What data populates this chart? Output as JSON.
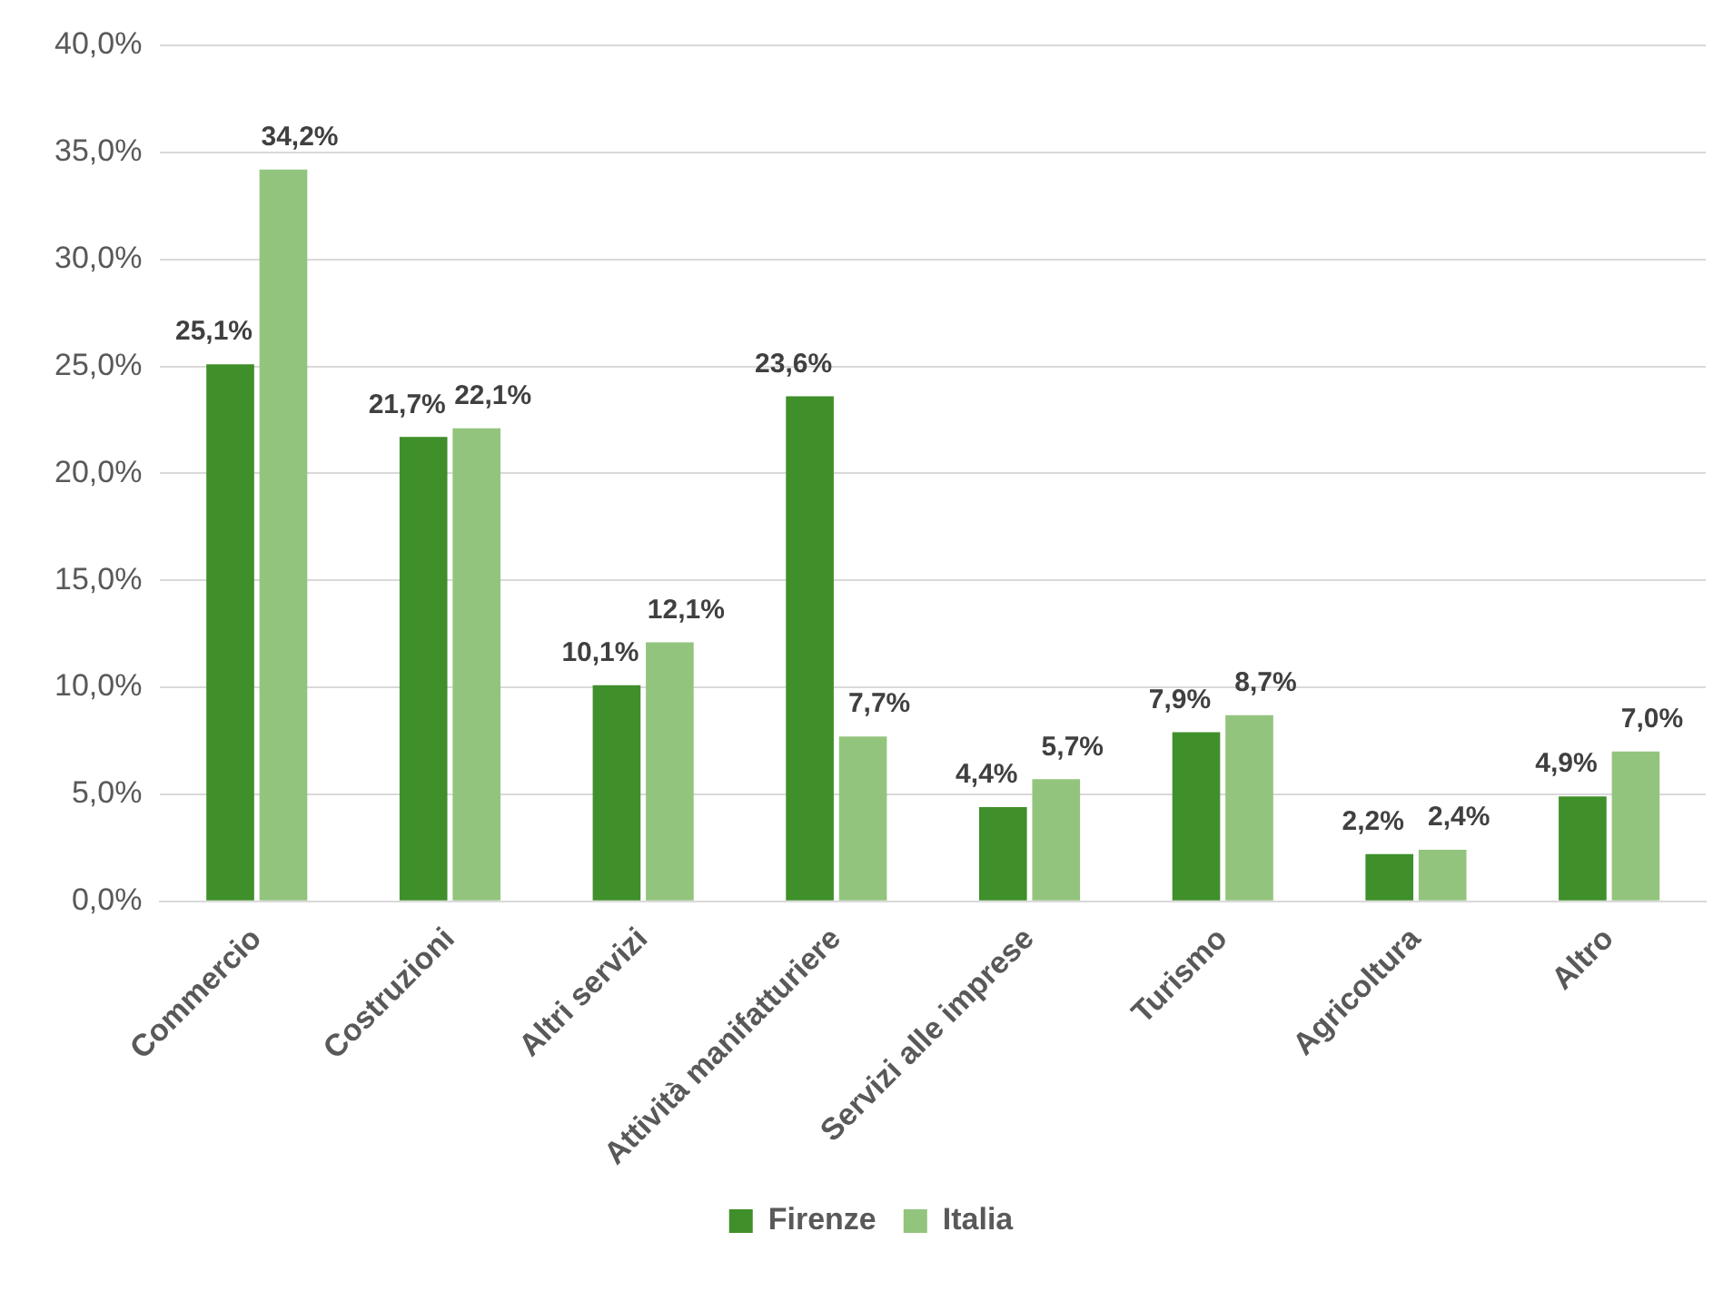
{
  "chart_data": {
    "type": "bar",
    "categories": [
      "Commercio",
      "Costruzioni",
      "Altri servizi",
      "Attività manifatturiere",
      "Servizi alle imprese",
      "Turismo",
      "Agricoltura",
      "Altro"
    ],
    "series": [
      {
        "name": "Firenze",
        "color": "#3f8f2a",
        "values": [
          25.1,
          21.7,
          10.1,
          23.6,
          4.4,
          7.9,
          2.2,
          4.9
        ],
        "value_labels": [
          "25,1%",
          "21,7%",
          "10,1%",
          "23,6%",
          "4,4%",
          "7,9%",
          "2,2%",
          "4,9%"
        ]
      },
      {
        "name": "Italia",
        "color": "#93c47d",
        "values": [
          34.2,
          22.1,
          12.1,
          7.7,
          5.7,
          8.7,
          2.4,
          7.0
        ],
        "value_labels": [
          "34,2%",
          "22,1%",
          "12,1%",
          "7,7%",
          "5,7%",
          "8,7%",
          "2,4%",
          "7,0%"
        ]
      }
    ],
    "ylim": [
      0,
      40
    ],
    "yticks": [
      {
        "value": 0,
        "label": "0,0%"
      },
      {
        "value": 5,
        "label": "5,0%"
      },
      {
        "value": 10,
        "label": "10,0%"
      },
      {
        "value": 15,
        "label": "15,0%"
      },
      {
        "value": 20,
        "label": "20,0%"
      },
      {
        "value": 25,
        "label": "25,0%"
      },
      {
        "value": 30,
        "label": "30,0%"
      },
      {
        "value": 35,
        "label": "35,0%"
      },
      {
        "value": 40,
        "label": "40,0%"
      }
    ],
    "grid": "y",
    "legend": "bottom"
  }
}
